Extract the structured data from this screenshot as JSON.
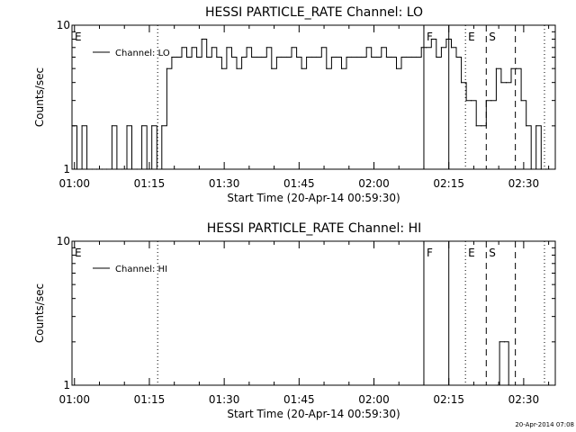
{
  "footer": {
    "timestamp": "20-Apr-2014 07:08"
  },
  "chart_data": [
    {
      "type": "line",
      "title": "HESSI PARTICLE_RATE Channel: LO",
      "xlabel": "Start Time (20-Apr-14 00:59:30)",
      "ylabel": "Counts/sec",
      "yscale": "log",
      "ylim": [
        1,
        10
      ],
      "y_ticks": [
        "1",
        "10"
      ],
      "xlim": [
        "00:59:30",
        "02:36:20"
      ],
      "x_ticks": [
        "01:00",
        "01:15",
        "01:30",
        "01:45",
        "02:00",
        "02:15",
        "02:30"
      ],
      "legend": {
        "entries": [
          "Channel: LO"
        ],
        "placement": "top-left"
      },
      "grid": false,
      "markers": [
        {
          "label": "E",
          "time": "00:59:30",
          "style": "none"
        },
        {
          "label": "",
          "time": "01:16:40",
          "style": "dotted"
        },
        {
          "label": "F",
          "time": "02:10:00",
          "style": "solid"
        },
        {
          "label": "",
          "time": "02:15:00",
          "style": "solid"
        },
        {
          "label": "E",
          "time": "02:18:20",
          "style": "dotted"
        },
        {
          "label": "S",
          "time": "02:22:30",
          "style": "dashed"
        },
        {
          "label": "",
          "time": "02:28:20",
          "style": "dashed"
        },
        {
          "label": "",
          "time": "02:34:10",
          "style": "dotted"
        }
      ],
      "series": [
        {
          "name": "Channel: LO",
          "x": [
            "00:59:30",
            "01:00:30",
            "01:01:30",
            "01:02:30",
            "01:03:30",
            "01:04:30",
            "01:05:30",
            "01:06:30",
            "01:07:30",
            "01:08:30",
            "01:09:30",
            "01:10:30",
            "01:11:30",
            "01:12:30",
            "01:13:30",
            "01:14:30",
            "01:15:30",
            "01:16:30",
            "01:17:30",
            "01:18:30",
            "01:19:30",
            "01:20:30",
            "01:21:30",
            "01:22:30",
            "01:23:30",
            "01:24:30",
            "01:25:30",
            "01:26:30",
            "01:27:30",
            "01:28:30",
            "01:29:30",
            "01:30:30",
            "01:31:30",
            "01:32:30",
            "01:33:30",
            "01:34:30",
            "01:35:30",
            "01:36:30",
            "01:37:30",
            "01:38:30",
            "01:39:30",
            "01:40:30",
            "01:41:30",
            "01:42:30",
            "01:43:30",
            "01:44:30",
            "01:45:30",
            "01:46:30",
            "01:47:30",
            "01:48:30",
            "01:49:30",
            "01:50:30",
            "01:51:30",
            "01:52:30",
            "01:53:30",
            "01:54:30",
            "01:55:30",
            "01:56:30",
            "01:57:30",
            "01:58:30",
            "01:59:30",
            "02:00:30",
            "02:01:30",
            "02:02:30",
            "02:03:30",
            "02:04:30",
            "02:05:30",
            "02:06:30",
            "02:07:30",
            "02:08:30",
            "02:09:30",
            "02:10:30",
            "02:11:30",
            "02:12:30",
            "02:13:30",
            "02:14:30",
            "02:15:30",
            "02:16:30",
            "02:17:30",
            "02:18:30",
            "02:19:30",
            "02:20:30",
            "02:21:30",
            "02:22:30",
            "02:23:30",
            "02:24:30",
            "02:25:30",
            "02:26:30",
            "02:27:30",
            "02:28:30",
            "02:29:30",
            "02:30:30",
            "02:31:30",
            "02:32:30",
            "02:33:30",
            "02:34:30"
          ],
          "y": [
            2,
            1,
            2,
            1,
            1,
            1,
            1,
            1,
            2,
            1,
            1,
            2,
            1,
            1,
            2,
            1,
            2,
            1,
            2,
            5,
            6,
            6,
            7,
            6,
            7,
            6,
            8,
            6,
            7,
            6,
            5,
            7,
            6,
            5,
            6,
            7,
            6,
            6,
            6,
            7,
            5,
            6,
            6,
            6,
            7,
            6,
            5,
            6,
            6,
            6,
            7,
            5,
            6,
            6,
            5,
            6,
            6,
            6,
            6,
            7,
            6,
            6,
            7,
            6,
            6,
            5,
            6,
            6,
            6,
            6,
            7,
            7,
            8,
            6,
            7,
            8,
            7,
            6,
            4,
            3,
            3,
            2,
            2,
            3,
            3,
            5,
            4,
            4,
            5,
            5,
            3,
            2,
            1,
            2,
            1,
            1
          ]
        }
      ]
    },
    {
      "type": "line",
      "title": "HESSI PARTICLE_RATE Channel: HI",
      "xlabel": "Start Time (20-Apr-14 00:59:30)",
      "ylabel": "Counts/sec",
      "yscale": "log",
      "ylim": [
        1,
        10
      ],
      "y_ticks": [
        "1",
        "10"
      ],
      "xlim": [
        "00:59:30",
        "02:36:20"
      ],
      "x_ticks": [
        "01:00",
        "01:15",
        "01:30",
        "01:45",
        "02:00",
        "02:15",
        "02:30"
      ],
      "legend": {
        "entries": [
          "Channel: HI"
        ],
        "placement": "top-left"
      },
      "grid": false,
      "markers": [
        {
          "label": "E",
          "time": "00:59:30",
          "style": "none"
        },
        {
          "label": "",
          "time": "01:16:40",
          "style": "dotted"
        },
        {
          "label": "F",
          "time": "02:10:00",
          "style": "solid"
        },
        {
          "label": "",
          "time": "02:15:00",
          "style": "solid"
        },
        {
          "label": "E",
          "time": "02:18:20",
          "style": "dotted"
        },
        {
          "label": "S",
          "time": "02:22:30",
          "style": "dashed"
        },
        {
          "label": "",
          "time": "02:28:20",
          "style": "dashed"
        },
        {
          "label": "",
          "time": "02:34:10",
          "style": "dotted"
        }
      ],
      "series": [
        {
          "name": "Channel: HI",
          "x": [
            "02:24:40",
            "02:25:10",
            "02:26:10",
            "02:27:00",
            "02:27:20"
          ],
          "y": [
            1,
            2,
            2,
            1,
            1
          ]
        }
      ]
    }
  ]
}
